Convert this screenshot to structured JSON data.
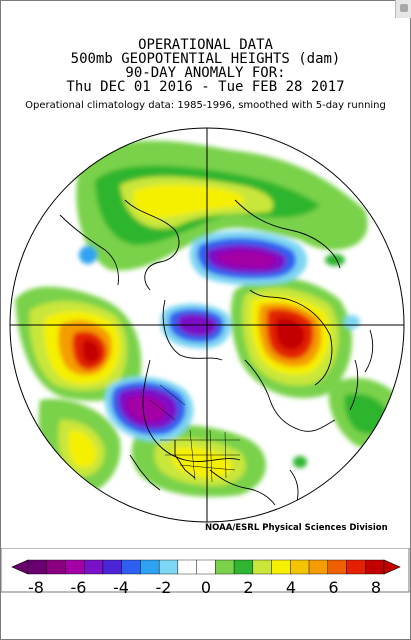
{
  "title": {
    "line1": "OPERATIONAL DATA",
    "line2": "500mb GEOPOTENTIAL HEIGHTS (dam)",
    "line3": "90-DAY ANOMALY FOR:",
    "line4": "Thu DEC 01 2016 - Tue FEB 28 2017",
    "subtitle": "Operational climatology data: 1985-1996, smoothed with 5-day running"
  },
  "credit": "NOAA/ESRL Physical Sciences Division",
  "colorbar": {
    "tick_labels": [
      "-8",
      "-6",
      "-4",
      "-2",
      "0",
      "2",
      "4",
      "6",
      "8"
    ],
    "tick_values": [
      -8,
      -6,
      -4,
      -2,
      0,
      2,
      4,
      6,
      8
    ],
    "colors": [
      "#6a0070",
      "#8a0080",
      "#a300a6",
      "#7b11c7",
      "#4a24d6",
      "#2e5ff0",
      "#2ea3f2",
      "#7dd6f2",
      "#ffffff",
      "#ffffff",
      "#79d24a",
      "#2fb52f",
      "#c9e63a",
      "#f5f000",
      "#f5c400",
      "#f59c00",
      "#f06000",
      "#e32000",
      "#c30000"
    ]
  },
  "anomaly_colors": {
    "neg_extreme": "#6a0070",
    "neg_strong": "#a300a6",
    "neg_mid": "#7b11c7",
    "neg_blue": "#2e5ff0",
    "neg_light": "#2ea3f2",
    "neg_pale": "#7dd6f2",
    "pos_green_light": "#79d24a",
    "pos_green": "#2fb52f",
    "pos_yellow": "#f5f000",
    "pos_orange": "#f59c00",
    "pos_red": "#e32000",
    "pos_darkred": "#c30000"
  }
}
